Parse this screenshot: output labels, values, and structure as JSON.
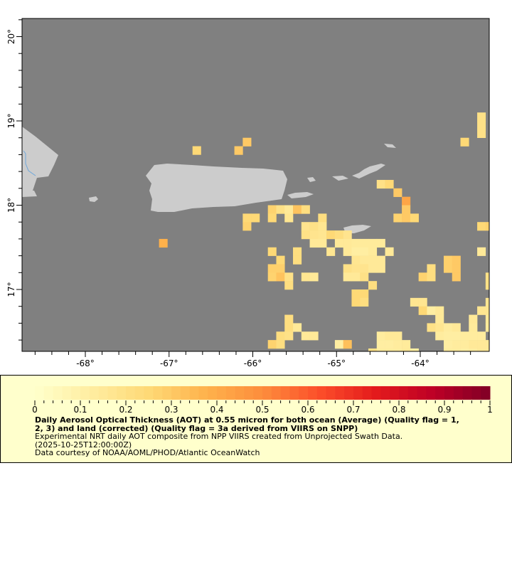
{
  "map": {
    "lon_range": [
      -68.75,
      -63.18
    ],
    "lat_range": [
      16.27,
      20.2
    ],
    "x_ticks": [
      -68,
      -67,
      -66,
      -65,
      -64
    ],
    "x_tick_labels": [
      "-68°",
      "-67°",
      "-66°",
      "-65°",
      "-64°"
    ],
    "y_ticks": [
      17,
      18,
      19,
      20
    ],
    "y_tick_labels": [
      "17°",
      "18°",
      "19°",
      "20°"
    ],
    "ocean_color": "#808080",
    "land_color": "#CCCCCC",
    "river_color": "#6FA8DC",
    "cell_size_deg": 0.1,
    "cells": [
      {
        "lat": 19.05,
        "c": [
          [
            -63.27,
            0.2
          ]
        ]
      },
      {
        "lat": 18.95,
        "c": [
          [
            -63.27,
            0.2
          ]
        ]
      },
      {
        "lat": 18.85,
        "c": [
          [
            -63.27,
            0.2
          ]
        ]
      },
      {
        "lat": 18.75,
        "c": [
          [
            -66.07,
            0.3
          ],
          [
            -63.47,
            0.25
          ]
        ]
      },
      {
        "lat": 18.65,
        "c": [
          [
            -66.67,
            0.25
          ],
          [
            -66.17,
            0.3
          ]
        ]
      },
      {
        "lat": 18.25,
        "c": [
          [
            -64.47,
            0.2
          ],
          [
            -64.37,
            0.25
          ]
        ]
      },
      {
        "lat": 18.15,
        "c": [
          [
            -64.27,
            0.3
          ]
        ]
      },
      {
        "lat": 18.05,
        "c": [
          [
            -64.17,
            0.42
          ]
        ]
      },
      {
        "lat": 17.95,
        "c": [
          [
            -65.77,
            0.27
          ],
          [
            -65.67,
            0.2
          ],
          [
            -65.57,
            0.15
          ],
          [
            -65.47,
            0.32
          ],
          [
            -65.37,
            0.22
          ],
          [
            -64.17,
            0.3
          ]
        ]
      },
      {
        "lat": 17.85,
        "c": [
          [
            -66.07,
            0.25
          ],
          [
            -65.97,
            0.25
          ],
          [
            -65.77,
            0.25
          ],
          [
            -65.57,
            0.17
          ],
          [
            -65.17,
            0.22
          ],
          [
            -64.27,
            0.27
          ],
          [
            -64.17,
            0.3
          ],
          [
            -64.07,
            0.25
          ]
        ]
      },
      {
        "lat": 17.75,
        "c": [
          [
            -66.07,
            0.27
          ],
          [
            -65.37,
            0.18
          ],
          [
            -65.27,
            0.2
          ],
          [
            -65.17,
            0.17
          ],
          [
            -63.27,
            0.25
          ],
          [
            -63.17,
            0.27
          ]
        ]
      },
      {
        "lat": 17.65,
        "c": [
          [
            -65.37,
            0.2
          ],
          [
            -65.27,
            0.18
          ],
          [
            -65.17,
            0.17
          ],
          [
            -65.07,
            0.25
          ],
          [
            -64.97,
            0.22
          ],
          [
            -64.87,
            0.18
          ]
        ]
      },
      {
        "lat": 17.55,
        "c": [
          [
            -67.07,
            0.38
          ],
          [
            -65.27,
            0.15
          ],
          [
            -65.17,
            0.15
          ],
          [
            -64.97,
            0.15
          ],
          [
            -64.87,
            0.15
          ],
          [
            -64.77,
            0.14
          ],
          [
            -64.67,
            0.14
          ],
          [
            -64.57,
            0.14
          ],
          [
            -64.47,
            0.14
          ]
        ]
      },
      {
        "lat": 17.45,
        "c": [
          [
            -65.77,
            0.25
          ],
          [
            -65.47,
            0.22
          ],
          [
            -65.07,
            0.17
          ],
          [
            -64.87,
            0.15
          ],
          [
            -64.77,
            0.12
          ],
          [
            -64.67,
            0.12
          ],
          [
            -64.57,
            0.14
          ],
          [
            -64.37,
            0.15
          ],
          [
            -63.27,
            0.15
          ]
        ]
      },
      {
        "lat": 17.35,
        "c": [
          [
            -65.67,
            0.25
          ],
          [
            -65.47,
            0.22
          ],
          [
            -64.77,
            0.17
          ],
          [
            -64.67,
            0.15
          ],
          [
            -64.57,
            0.15
          ],
          [
            -64.47,
            0.15
          ],
          [
            -63.67,
            0.28
          ],
          [
            -63.57,
            0.3
          ]
        ]
      },
      {
        "lat": 17.25,
        "c": [
          [
            -65.77,
            0.28
          ],
          [
            -65.67,
            0.28
          ],
          [
            -64.87,
            0.2
          ],
          [
            -64.77,
            0.18
          ],
          [
            -64.67,
            0.18
          ],
          [
            -64.57,
            0.15
          ],
          [
            -64.47,
            0.15
          ],
          [
            -63.87,
            0.22
          ],
          [
            -63.67,
            0.28
          ],
          [
            -63.57,
            0.3
          ]
        ]
      },
      {
        "lat": 17.15,
        "c": [
          [
            -65.77,
            0.27
          ],
          [
            -65.67,
            0.32
          ],
          [
            -65.57,
            0.2
          ],
          [
            -65.37,
            0.17
          ],
          [
            -65.27,
            0.15
          ],
          [
            -64.87,
            0.15
          ],
          [
            -64.77,
            0.15
          ],
          [
            -64.67,
            0.2
          ],
          [
            -63.97,
            0.27
          ],
          [
            -63.87,
            0.22
          ],
          [
            -63.57,
            0.3
          ],
          [
            -63.17,
            0.2
          ]
        ]
      },
      {
        "lat": 17.05,
        "c": [
          [
            -65.57,
            0.22
          ],
          [
            -64.57,
            0.22
          ],
          [
            -63.17,
            0.2
          ]
        ]
      },
      {
        "lat": 16.95,
        "c": [
          [
            -64.77,
            0.25
          ],
          [
            -64.67,
            0.25
          ]
        ]
      },
      {
        "lat": 16.85,
        "c": [
          [
            -64.77,
            0.25
          ],
          [
            -64.67,
            0.22
          ],
          [
            -64.07,
            0.17
          ],
          [
            -63.97,
            0.17
          ],
          [
            -63.17,
            0.17
          ]
        ]
      },
      {
        "lat": 16.75,
        "c": [
          [
            -63.97,
            0.25
          ],
          [
            -63.87,
            0.12
          ],
          [
            -63.77,
            0.15
          ],
          [
            -63.27,
            0.17
          ],
          [
            -63.17,
            0.17
          ]
        ]
      },
      {
        "lat": 16.65,
        "c": [
          [
            -65.57,
            0.22
          ],
          [
            -63.77,
            0.15
          ],
          [
            -63.37,
            0.15
          ],
          [
            -63.17,
            0.15
          ]
        ]
      },
      {
        "lat": 16.55,
        "c": [
          [
            -65.57,
            0.22
          ],
          [
            -65.47,
            0.15
          ],
          [
            -63.87,
            0.2
          ],
          [
            -63.77,
            0.17
          ],
          [
            -63.67,
            0.13
          ],
          [
            -63.57,
            0.15
          ],
          [
            -63.37,
            0.14
          ],
          [
            -63.17,
            0.14
          ]
        ]
      },
      {
        "lat": 16.45,
        "c": [
          [
            -65.67,
            0.22
          ],
          [
            -65.57,
            0.2
          ],
          [
            -65.37,
            0.15
          ],
          [
            -65.27,
            0.15
          ],
          [
            -64.47,
            0.13
          ],
          [
            -64.37,
            0.15
          ],
          [
            -64.27,
            0.15
          ],
          [
            -63.77,
            0.13
          ],
          [
            -63.67,
            0.12
          ],
          [
            -63.57,
            0.12
          ],
          [
            -63.47,
            0.13
          ],
          [
            -63.37,
            0.13
          ],
          [
            -63.27,
            0.13
          ]
        ]
      },
      {
        "lat": 16.35,
        "c": [
          [
            -65.77,
            0.27
          ],
          [
            -65.67,
            0.22
          ],
          [
            -64.97,
            0.12
          ],
          [
            -64.87,
            0.33
          ],
          [
            -64.47,
            0.12
          ],
          [
            -64.37,
            0.12
          ],
          [
            -64.27,
            0.13
          ],
          [
            -64.17,
            0.14
          ],
          [
            -63.67,
            0.12
          ],
          [
            -63.57,
            0.13
          ],
          [
            -63.47,
            0.13
          ],
          [
            -63.37,
            0.15
          ],
          [
            -63.27,
            0.15
          ],
          [
            -63.17,
            0.15
          ]
        ]
      },
      {
        "lat": 16.25,
        "c": [
          [
            -64.57,
            0.2
          ],
          [
            -64.47,
            0.13
          ],
          [
            -64.37,
            0.13
          ],
          [
            -64.27,
            0.13
          ],
          [
            -64.17,
            0.15
          ],
          [
            -64.07,
            0.12
          ],
          [
            -63.67,
            0.13
          ],
          [
            -63.57,
            0.13
          ],
          [
            -63.47,
            0.12
          ],
          [
            -63.37,
            0.13
          ],
          [
            -63.27,
            0.15
          ],
          [
            -63.17,
            0.15
          ]
        ]
      }
    ]
  },
  "colorbar": {
    "range": [
      0,
      1
    ],
    "ticks": [
      "0",
      "0.1",
      "0.2",
      "0.3",
      "0.4",
      "0.5",
      "0.6",
      "0.7",
      "0.8",
      "0.9",
      "1"
    ],
    "colormap": [
      "#FFFFCC",
      "#FFEDA0",
      "#FED976",
      "#FEB24C",
      "#FD8D3C",
      "#FC4E2A",
      "#E31A1C",
      "#BD0026",
      "#800026"
    ]
  },
  "legend": {
    "title_line1": "Daily Aerosol Optical Thickness (AOT) at 0.55 micron for both ocean (Average) (Quality flag = 1,",
    "title_line2": "2, 3) and land (corrected) (Quality flag = 3a derived from VIIRS on SNPP)",
    "description": "Experimental NRT daily AOT composite from NPP VIIRS created from Unprojected Swath Data.",
    "time": "(2025-10-25T12:00:00Z)",
    "credit": "Data courtesy of NOAA/AOML/PHOD/Atlantic OceanWatch"
  }
}
